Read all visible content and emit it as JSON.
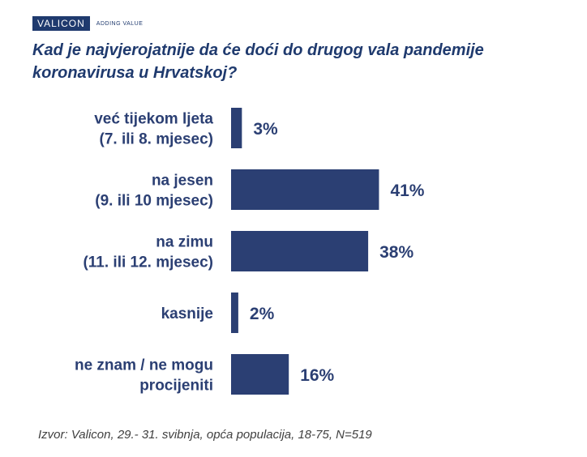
{
  "brand": {
    "name": "VALICON",
    "tagline": "ADDING VALUE",
    "color": "#1f3a6e"
  },
  "title_lines": [
    "Kad je najvjerojatnije da će doći do drugog vala pandemije",
    "koronavirusa u Hrvatskoj?"
  ],
  "source": "Izvor: Valicon, 29.- 31. svibnja, opća populacija, 18-75, N=519",
  "chart_data": {
    "type": "bar",
    "orientation": "horizontal",
    "title": "Kad je najvjerojatnije da će doći do drugog vala pandemije koronavirusa u Hrvatskoj?",
    "categories": [
      [
        "već tijekom ljeta",
        "(7. ili 8. mjesec)"
      ],
      [
        "na jesen",
        "(9. ili 10 mjesec)"
      ],
      [
        "na zimu",
        "(11. ili 12. mjesec)"
      ],
      [
        "kasnije"
      ],
      [
        "ne znam / ne mogu",
        "procijeniti"
      ]
    ],
    "values": [
      3,
      41,
      38,
      2,
      16
    ],
    "value_labels": [
      "3%",
      "41%",
      "38%",
      "2%",
      "16%"
    ],
    "unit": "%",
    "xlim": [
      0,
      100
    ],
    "bar_color": "#2b3f73",
    "label_color": "#2b3f73",
    "grid": false,
    "legend": "none"
  }
}
